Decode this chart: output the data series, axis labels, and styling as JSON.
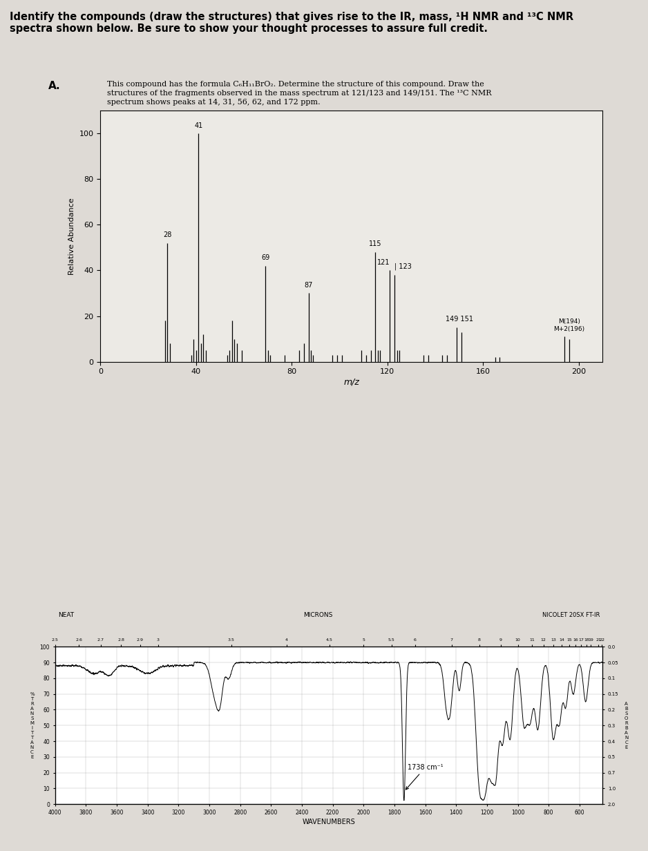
{
  "title_text": "Identify the compounds (draw the structures) that gives rise to the IR, mass, ¹H NMR and ¹³C NMR\nspectra shown below. Be sure to show your thought processes to assure full credit.",
  "section_label": "A.",
  "description": "This compound has the formula C₆H₁₁BrO₂. Determine the structure of this compound. Draw the\nstructures of the fragments observed in the mass spectrum at 121/123 and 149/151. The ¹³C NMR\nspectrum shows peaks at 14, 31, 56, 62, and 172 ppm.",
  "ms_peaks": [
    {
      "mz": 27,
      "rel": 18
    },
    {
      "mz": 28,
      "rel": 52
    },
    {
      "mz": 29,
      "rel": 8
    },
    {
      "mz": 38,
      "rel": 3
    },
    {
      "mz": 39,
      "rel": 10
    },
    {
      "mz": 40,
      "rel": 5
    },
    {
      "mz": 41,
      "rel": 100
    },
    {
      "mz": 42,
      "rel": 8
    },
    {
      "mz": 43,
      "rel": 12
    },
    {
      "mz": 44,
      "rel": 5
    },
    {
      "mz": 53,
      "rel": 3
    },
    {
      "mz": 54,
      "rel": 5
    },
    {
      "mz": 55,
      "rel": 18
    },
    {
      "mz": 56,
      "rel": 10
    },
    {
      "mz": 57,
      "rel": 8
    },
    {
      "mz": 59,
      "rel": 5
    },
    {
      "mz": 69,
      "rel": 42
    },
    {
      "mz": 70,
      "rel": 5
    },
    {
      "mz": 71,
      "rel": 3
    },
    {
      "mz": 77,
      "rel": 3
    },
    {
      "mz": 83,
      "rel": 5
    },
    {
      "mz": 85,
      "rel": 8
    },
    {
      "mz": 87,
      "rel": 30
    },
    {
      "mz": 88,
      "rel": 5
    },
    {
      "mz": 89,
      "rel": 3
    },
    {
      "mz": 97,
      "rel": 3
    },
    {
      "mz": 99,
      "rel": 3
    },
    {
      "mz": 101,
      "rel": 3
    },
    {
      "mz": 109,
      "rel": 5
    },
    {
      "mz": 111,
      "rel": 3
    },
    {
      "mz": 113,
      "rel": 5
    },
    {
      "mz": 115,
      "rel": 48
    },
    {
      "mz": 116,
      "rel": 5
    },
    {
      "mz": 117,
      "rel": 5
    },
    {
      "mz": 121,
      "rel": 40
    },
    {
      "mz": 123,
      "rel": 38
    },
    {
      "mz": 124,
      "rel": 5
    },
    {
      "mz": 125,
      "rel": 5
    },
    {
      "mz": 135,
      "rel": 3
    },
    {
      "mz": 137,
      "rel": 3
    },
    {
      "mz": 143,
      "rel": 3
    },
    {
      "mz": 145,
      "rel": 3
    },
    {
      "mz": 149,
      "rel": 15
    },
    {
      "mz": 151,
      "rel": 13
    },
    {
      "mz": 165,
      "rel": 2
    },
    {
      "mz": 167,
      "rel": 2
    },
    {
      "mz": 194,
      "rel": 11
    },
    {
      "mz": 196,
      "rel": 10
    }
  ],
  "ms_labels": [
    {
      "mz": 41,
      "rel": 100,
      "label": "41"
    },
    {
      "mz": 28,
      "rel": 52,
      "label": "28"
    },
    {
      "mz": 115,
      "rel": 48,
      "label": "115"
    },
    {
      "mz": 69,
      "rel": 42,
      "label": "69"
    },
    {
      "mz": 121,
      "rel": 40,
      "label": "121"
    },
    {
      "mz": 123,
      "rel": 38,
      "label": "123"
    },
    {
      "mz": 87,
      "rel": 30,
      "label": "87"
    },
    {
      "mz": 149,
      "rel": 15,
      "label": "149 151"
    },
    {
      "mz": 194,
      "rel": 11,
      "label": "M(194)\nM+2(196)"
    }
  ],
  "ms_xlabel": "m/z",
  "ms_ylabel": "Relative Abundance",
  "ms_xlim": [
    0,
    210
  ],
  "ms_ylim": [
    0,
    110
  ],
  "ms_yticks": [
    0,
    20,
    40,
    60,
    80,
    100
  ],
  "ms_xticks": [
    0,
    40,
    80,
    120,
    160,
    200
  ],
  "ir_annotation": "1738 cm⁻¹",
  "ir_xlabel": "WAVENUMBERS",
  "ir_neat": "NEAT",
  "ir_microns": "MICRONS",
  "ir_instrument": "NICOLET 20SX FT-IR",
  "micron_values": [
    2.5,
    2.6,
    2.7,
    2.8,
    2.9,
    3,
    3.5,
    4,
    4.5,
    5,
    5.5,
    6,
    7,
    8,
    9,
    10,
    11,
    12,
    13,
    14,
    15,
    16,
    17,
    18,
    19,
    21,
    22
  ],
  "absorbance_labels_right": [
    "0.0",
    "0.05",
    "0.1",
    "0.15",
    "0.2",
    "0.3",
    "0.4",
    "0.5",
    "0.7",
    "1.0",
    "2.0"
  ],
  "background_color": "#dedad5",
  "paper_color": "#eceae5",
  "title_bg": "#ccc8c3"
}
